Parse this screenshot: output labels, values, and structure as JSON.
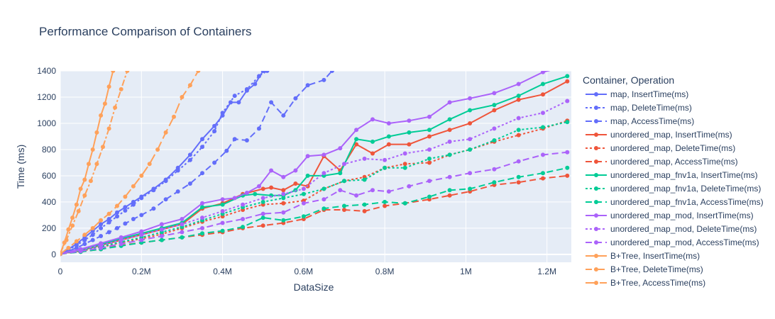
{
  "chart_data": {
    "type": "line",
    "title": "Performance Comparison of Containers",
    "xlabel": "DataSize",
    "ylabel": "Time (ms)",
    "xlim": [
      0,
      1260000
    ],
    "ylim": [
      -60,
      1400
    ],
    "x_ticks": [
      0,
      200000,
      400000,
      600000,
      800000,
      1000000,
      1200000
    ],
    "x_tick_labels": [
      "0",
      "0.2M",
      "0.4M",
      "0.6M",
      "0.8M",
      "1M",
      "1.2M"
    ],
    "y_ticks": [
      0,
      200,
      400,
      600,
      800,
      1000,
      1200,
      1400
    ],
    "y_tick_labels": [
      "0",
      "200",
      "400",
      "600",
      "800",
      "1000",
      "1200",
      "1400"
    ],
    "grid": true,
    "legend_title": "Container, Operation",
    "legend_position": "right",
    "series": [
      {
        "name": "map, InsertTime(ms)",
        "color": "#636efa",
        "dash": "solid",
        "x": [
          0,
          20000,
          40000,
          60000,
          80000,
          100000,
          120000,
          140000,
          160000,
          180000,
          200000,
          230000,
          260000,
          290000,
          320000,
          350000,
          380000,
          400000,
          420000,
          440000,
          460000,
          480000,
          500000
        ],
        "y": [
          5,
          40,
          80,
          130,
          180,
          230,
          270,
          320,
          360,
          400,
          440,
          500,
          570,
          660,
          760,
          880,
          980,
          1060,
          1160,
          1160,
          1250,
          1300,
          1400
        ]
      },
      {
        "name": "map, DeleteTime(ms)",
        "color": "#636efa",
        "dash": "dot",
        "x": [
          0,
          20000,
          40000,
          60000,
          80000,
          100000,
          120000,
          140000,
          160000,
          180000,
          200000,
          230000,
          260000,
          290000,
          320000,
          350000,
          380000,
          400000,
          430000,
          460000,
          490000,
          510000
        ],
        "y": [
          5,
          35,
          70,
          110,
          150,
          200,
          245,
          290,
          335,
          380,
          430,
          490,
          560,
          640,
          720,
          820,
          940,
          1080,
          1210,
          1260,
          1360,
          1400
        ]
      },
      {
        "name": "map, AccessTime(ms)",
        "color": "#636efa",
        "dash": "dash",
        "x": [
          0,
          20000,
          40000,
          60000,
          80000,
          100000,
          120000,
          140000,
          160000,
          180000,
          200000,
          230000,
          260000,
          290000,
          320000,
          350000,
          380000,
          410000,
          430000,
          460000,
          490000,
          520000,
          550000,
          580000,
          610000,
          650000,
          670000
        ],
        "y": [
          5,
          25,
          50,
          80,
          110,
          140,
          170,
          200,
          235,
          270,
          300,
          350,
          420,
          480,
          540,
          620,
          700,
          790,
          880,
          870,
          960,
          1160,
          1060,
          1190,
          1290,
          1330,
          1400
        ]
      },
      {
        "name": "unordered_map, InsertTime(ms)",
        "color": "#ef553b",
        "dash": "solid",
        "x": [
          0,
          50000,
          100000,
          150000,
          200000,
          250000,
          300000,
          350000,
          400000,
          450000,
          500000,
          520000,
          550000,
          580000,
          610000,
          650000,
          690000,
          730000,
          770000,
          810000,
          860000,
          910000,
          960000,
          1010000,
          1070000,
          1130000,
          1190000,
          1250000
        ],
        "y": [
          5,
          30,
          70,
          110,
          150,
          190,
          230,
          350,
          390,
          460,
          500,
          510,
          490,
          540,
          520,
          750,
          640,
          840,
          770,
          840,
          840,
          900,
          950,
          1000,
          1100,
          1180,
          1220,
          1320
        ]
      },
      {
        "name": "unordered_map, DeleteTime(ms)",
        "color": "#ef553b",
        "dash": "dot",
        "x": [
          0,
          50000,
          100000,
          150000,
          200000,
          250000,
          300000,
          350000,
          400000,
          450000,
          500000,
          550000,
          600000,
          650000,
          700000,
          750000,
          800000,
          850000,
          910000,
          960000,
          1010000,
          1070000,
          1130000,
          1190000,
          1250000
        ],
        "y": [
          5,
          25,
          55,
          90,
          120,
          155,
          200,
          250,
          290,
          340,
          380,
          390,
          410,
          500,
          560,
          590,
          660,
          690,
          700,
          760,
          800,
          860,
          910,
          960,
          1020
        ]
      },
      {
        "name": "unordered_map, AccessTime(ms)",
        "color": "#ef553b",
        "dash": "dash",
        "x": [
          0,
          50000,
          100000,
          150000,
          200000,
          250000,
          300000,
          350000,
          400000,
          450000,
          500000,
          550000,
          600000,
          650000,
          700000,
          750000,
          800000,
          850000,
          910000,
          960000,
          1010000,
          1070000,
          1130000,
          1190000,
          1250000
        ],
        "y": [
          3,
          20,
          40,
          70,
          90,
          110,
          130,
          150,
          170,
          200,
          220,
          240,
          270,
          340,
          340,
          330,
          370,
          390,
          420,
          450,
          480,
          530,
          550,
          580,
          600
        ]
      },
      {
        "name": "unordered_map_fnv1a, InsertTime(ms)",
        "color": "#00cc96",
        "dash": "solid",
        "x": [
          0,
          50000,
          100000,
          150000,
          200000,
          250000,
          300000,
          350000,
          400000,
          450000,
          480000,
          520000,
          550000,
          580000,
          610000,
          650000,
          690000,
          730000,
          770000,
          810000,
          860000,
          910000,
          960000,
          1010000,
          1070000,
          1130000,
          1190000,
          1250000
        ],
        "y": [
          5,
          35,
          75,
          120,
          160,
          200,
          240,
          360,
          380,
          450,
          460,
          450,
          450,
          490,
          600,
          600,
          620,
          880,
          860,
          900,
          930,
          950,
          1030,
          1100,
          1140,
          1210,
          1300,
          1360
        ]
      },
      {
        "name": "unordered_map_fnv1a, DeleteTime(ms)",
        "color": "#00cc96",
        "dash": "dot",
        "x": [
          0,
          50000,
          100000,
          150000,
          200000,
          250000,
          300000,
          350000,
          400000,
          450000,
          500000,
          550000,
          600000,
          650000,
          700000,
          750000,
          800000,
          850000,
          910000,
          960000,
          1010000,
          1070000,
          1130000,
          1190000,
          1250000
        ],
        "y": [
          5,
          30,
          60,
          95,
          130,
          170,
          210,
          260,
          310,
          360,
          400,
          430,
          460,
          500,
          560,
          570,
          660,
          660,
          730,
          760,
          800,
          870,
          950,
          970,
          1010
        ]
      },
      {
        "name": "unordered_map_fnv1a, AccessTime(ms)",
        "color": "#00cc96",
        "dash": "dash",
        "x": [
          0,
          50000,
          100000,
          150000,
          200000,
          250000,
          300000,
          350000,
          400000,
          450000,
          500000,
          550000,
          600000,
          650000,
          700000,
          750000,
          800000,
          850000,
          910000,
          960000,
          1010000,
          1070000,
          1130000,
          1190000,
          1250000
        ],
        "y": [
          3,
          20,
          40,
          65,
          90,
          110,
          130,
          160,
          180,
          210,
          280,
          260,
          290,
          350,
          370,
          380,
          400,
          390,
          440,
          490,
          500,
          550,
          590,
          620,
          660
        ]
      },
      {
        "name": "unordered_map_mod, InsertTime(ms)",
        "color": "#ab63fa",
        "dash": "solid",
        "x": [
          0,
          50000,
          100000,
          150000,
          200000,
          250000,
          300000,
          350000,
          400000,
          430000,
          460000,
          490000,
          520000,
          550000,
          580000,
          610000,
          650000,
          690000,
          730000,
          770000,
          810000,
          860000,
          910000,
          960000,
          1010000,
          1070000,
          1130000,
          1190000,
          1250000
        ],
        "y": [
          5,
          40,
          85,
          130,
          175,
          230,
          270,
          390,
          420,
          430,
          470,
          520,
          640,
          590,
          640,
          750,
          760,
          810,
          950,
          1030,
          1000,
          1020,
          1050,
          1160,
          1190,
          1230,
          1300,
          1390,
          1440
        ]
      },
      {
        "name": "unordered_map_mod, DeleteTime(ms)",
        "color": "#ab63fa",
        "dash": "dot",
        "x": [
          0,
          50000,
          100000,
          150000,
          200000,
          250000,
          300000,
          350000,
          400000,
          450000,
          500000,
          550000,
          600000,
          650000,
          700000,
          750000,
          800000,
          850000,
          910000,
          960000,
          1010000,
          1070000,
          1130000,
          1190000,
          1250000
        ],
        "y": [
          5,
          35,
          70,
          110,
          150,
          190,
          230,
          280,
          330,
          380,
          430,
          460,
          500,
          620,
          690,
          730,
          720,
          770,
          800,
          860,
          880,
          960,
          1040,
          1080,
          1170
        ]
      },
      {
        "name": "unordered_map_mod, AccessTime(ms)",
        "color": "#ab63fa",
        "dash": "dash",
        "x": [
          0,
          50000,
          100000,
          150000,
          200000,
          250000,
          300000,
          350000,
          400000,
          450000,
          500000,
          550000,
          600000,
          650000,
          690000,
          730000,
          770000,
          810000,
          860000,
          910000,
          960000,
          1010000,
          1070000,
          1130000,
          1190000,
          1250000
        ],
        "y": [
          3,
          25,
          50,
          80,
          110,
          140,
          170,
          200,
          240,
          270,
          310,
          320,
          390,
          420,
          490,
          450,
          490,
          480,
          520,
          560,
          590,
          620,
          650,
          710,
          760,
          780
        ]
      },
      {
        "name": "B+Tree, InsertTime(ms)",
        "color": "#ffa15a",
        "dash": "solid",
        "x": [
          0,
          10000,
          20000,
          30000,
          40000,
          50000,
          60000,
          70000,
          80000,
          90000,
          100000,
          110000,
          120000,
          130000
        ],
        "y": [
          10,
          90,
          190,
          280,
          380,
          500,
          570,
          690,
          800,
          930,
          1060,
          1150,
          1280,
          1400
        ]
      },
      {
        "name": "B+Tree, DeleteTime(ms)",
        "color": "#ffa15a",
        "dash": "dashdot",
        "x": [
          0,
          15000,
          30000,
          45000,
          60000,
          75000,
          90000,
          105000,
          120000,
          135000,
          150000,
          165000
        ],
        "y": [
          10,
          110,
          220,
          330,
          450,
          560,
          690,
          820,
          960,
          1120,
          1260,
          1400
        ]
      },
      {
        "name": "B+Tree, AccessTime(ms)",
        "color": "#ffa15a",
        "dash": "longdash",
        "x": [
          0,
          20000,
          40000,
          60000,
          80000,
          100000,
          120000,
          140000,
          160000,
          180000,
          200000,
          220000,
          240000,
          260000,
          280000,
          300000,
          320000,
          340000
        ],
        "y": [
          5,
          50,
          100,
          150,
          200,
          260,
          310,
          370,
          440,
          520,
          600,
          690,
          800,
          930,
          1050,
          1200,
          1290,
          1400
        ]
      }
    ]
  }
}
